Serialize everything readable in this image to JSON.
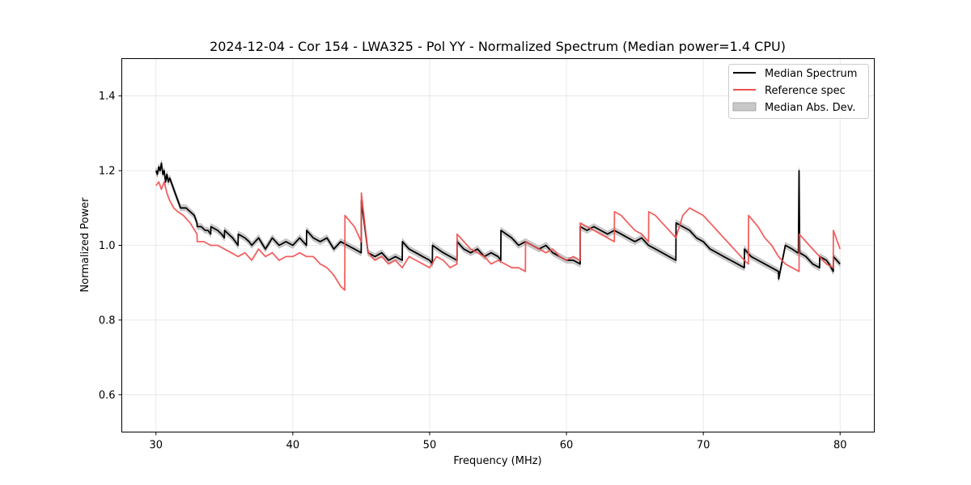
{
  "chart_data": {
    "type": "line",
    "title": "2024-12-04 - Cor 154 - LWA325 - Pol YY - Normalized Spectrum (Median power=1.4 CPU)",
    "xlabel": "Frequency (MHz)",
    "ylabel": "Normalized Power",
    "xlim": [
      27.5,
      82.5
    ],
    "ylim": [
      0.5,
      1.5
    ],
    "xticks": [
      30,
      40,
      50,
      60,
      70,
      80
    ],
    "yticks": [
      0.6,
      0.8,
      1.0,
      1.2,
      1.4
    ],
    "xtick_labels": [
      "30",
      "40",
      "50",
      "60",
      "70",
      "80"
    ],
    "ytick_labels": [
      "0.6",
      "0.8",
      "1.0",
      "1.2",
      "1.4"
    ],
    "grid": true,
    "legend_position": "top-right",
    "legend": [
      {
        "name": "Median Spectrum",
        "kind": "line",
        "color": "#000000"
      },
      {
        "name": "Reference spec",
        "kind": "line",
        "color": "#f05050"
      },
      {
        "name": "Median Abs. Dev.",
        "kind": "band",
        "color": "#c8c8c8"
      }
    ],
    "series": [
      {
        "name": "Median Spectrum",
        "color": "#000000",
        "mad": 0.008,
        "x": [
          30.0,
          30.1,
          30.2,
          30.3,
          30.4,
          30.5,
          30.6,
          30.7,
          30.8,
          30.9,
          31.0,
          31.2,
          31.4,
          31.6,
          31.8,
          32.0,
          32.2,
          32.5,
          32.8,
          33.0,
          33.01,
          33.3,
          33.6,
          33.8,
          34.0,
          34.01,
          34.5,
          34.8,
          35.0,
          35.01,
          35.3,
          35.6,
          36.0,
          36.01,
          36.5,
          36.8,
          37.0,
          37.5,
          38.0,
          38.5,
          39.0,
          39.5,
          40.0,
          40.5,
          41.0,
          41.01,
          41.5,
          42.0,
          42.5,
          43.0,
          43.5,
          44.0,
          44.5,
          45.0,
          45.01,
          45.5,
          46.0,
          46.5,
          47.0,
          47.5,
          48.0,
          48.01,
          48.5,
          49.0,
          49.5,
          50.0,
          50.2,
          50.21,
          50.6,
          51.0,
          51.5,
          52.0,
          52.01,
          52.5,
          53.0,
          53.5,
          54.0,
          54.5,
          55.0,
          55.2,
          55.21,
          55.6,
          56.0,
          56.5,
          57.0,
          57.5,
          58.0,
          58.5,
          59.0,
          59.5,
          60.0,
          60.5,
          61.0,
          61.01,
          61.5,
          62.0,
          62.5,
          63.0,
          63.5,
          64.0,
          64.5,
          65.0,
          65.5,
          66.0,
          66.5,
          67.0,
          67.5,
          68.0,
          68.01,
          68.5,
          69.0,
          69.5,
          70.0,
          70.5,
          71.0,
          71.5,
          72.0,
          72.5,
          73.0,
          73.01,
          73.5,
          74.0,
          74.5,
          75.0,
          75.5,
          75.51,
          76.0,
          76.5,
          76.9,
          76.95,
          77.0,
          77.05,
          77.5,
          78.0,
          78.5,
          78.51,
          79.0,
          79.2,
          79.5,
          79.51,
          80.0
        ],
        "y": [
          1.2,
          1.19,
          1.21,
          1.2,
          1.22,
          1.19,
          1.2,
          1.17,
          1.19,
          1.17,
          1.18,
          1.16,
          1.14,
          1.12,
          1.1,
          1.1,
          1.1,
          1.09,
          1.08,
          1.06,
          1.05,
          1.05,
          1.04,
          1.04,
          1.03,
          1.05,
          1.04,
          1.03,
          1.02,
          1.04,
          1.03,
          1.02,
          1.0,
          1.03,
          1.02,
          1.01,
          1.0,
          1.02,
          0.99,
          1.02,
          1.0,
          1.01,
          1.0,
          1.02,
          1.0,
          1.04,
          1.02,
          1.01,
          1.02,
          0.99,
          1.01,
          1.0,
          0.99,
          0.98,
          1.12,
          0.98,
          0.97,
          0.98,
          0.96,
          0.97,
          0.96,
          1.01,
          0.99,
          0.98,
          0.97,
          0.96,
          0.95,
          1.0,
          0.99,
          0.98,
          0.97,
          0.96,
          1.01,
          0.99,
          0.98,
          0.99,
          0.97,
          0.98,
          0.97,
          0.96,
          1.04,
          1.03,
          1.02,
          1.0,
          1.01,
          1.0,
          0.99,
          1.0,
          0.98,
          0.97,
          0.96,
          0.96,
          0.95,
          1.05,
          1.04,
          1.05,
          1.04,
          1.03,
          1.04,
          1.03,
          1.02,
          1.01,
          1.02,
          1.0,
          0.99,
          0.98,
          0.97,
          0.96,
          1.06,
          1.05,
          1.04,
          1.02,
          1.01,
          0.99,
          0.98,
          0.97,
          0.96,
          0.95,
          0.94,
          0.99,
          0.97,
          0.96,
          0.95,
          0.94,
          0.93,
          0.91,
          1.0,
          0.99,
          0.98,
          0.98,
          1.2,
          0.98,
          0.97,
          0.95,
          0.94,
          0.97,
          0.96,
          0.95,
          0.93,
          0.97,
          0.95
        ]
      },
      {
        "name": "Reference spec",
        "color": "#f05050",
        "x": [
          30.0,
          30.2,
          30.4,
          30.6,
          30.8,
          31.0,
          31.3,
          31.6,
          32.0,
          32.5,
          33.0,
          33.01,
          33.5,
          34.0,
          34.5,
          35.0,
          35.5,
          36.0,
          36.5,
          37.0,
          37.5,
          38.0,
          38.5,
          39.0,
          39.5,
          40.0,
          40.5,
          41.0,
          41.5,
          42.0,
          42.5,
          43.0,
          43.5,
          43.8,
          43.81,
          44.5,
          45.0,
          45.01,
          45.5,
          46.0,
          46.5,
          47.0,
          47.5,
          48.0,
          48.5,
          49.0,
          49.5,
          50.0,
          50.5,
          51.0,
          51.5,
          52.0,
          52.01,
          52.5,
          53.0,
          53.5,
          54.0,
          54.5,
          55.0,
          55.5,
          56.0,
          56.5,
          57.0,
          57.01,
          57.5,
          58.0,
          58.5,
          59.0,
          59.5,
          60.0,
          60.5,
          61.0,
          61.01,
          61.5,
          62.0,
          62.5,
          63.0,
          63.5,
          63.51,
          64.0,
          64.5,
          65.0,
          65.5,
          66.0,
          66.01,
          66.5,
          67.0,
          67.5,
          68.0,
          68.5,
          69.0,
          69.5,
          70.0,
          70.5,
          71.0,
          71.5,
          72.0,
          72.5,
          73.0,
          73.3,
          73.31,
          74.0,
          74.5,
          75.0,
          75.5,
          76.0,
          76.5,
          77.0,
          77.01,
          77.5,
          78.0,
          78.5,
          79.0,
          79.5,
          79.51,
          80.0
        ],
        "y": [
          1.16,
          1.17,
          1.15,
          1.17,
          1.14,
          1.12,
          1.1,
          1.09,
          1.08,
          1.06,
          1.03,
          1.01,
          1.01,
          1.0,
          1.0,
          0.99,
          0.98,
          0.97,
          0.98,
          0.96,
          0.99,
          0.97,
          0.98,
          0.96,
          0.97,
          0.97,
          0.98,
          0.97,
          0.97,
          0.95,
          0.94,
          0.92,
          0.89,
          0.88,
          1.08,
          1.05,
          1.01,
          1.14,
          0.98,
          0.96,
          0.97,
          0.95,
          0.96,
          0.94,
          0.97,
          0.96,
          0.95,
          0.94,
          0.97,
          0.96,
          0.94,
          0.95,
          1.03,
          1.01,
          0.99,
          0.98,
          0.97,
          0.95,
          0.96,
          0.95,
          0.94,
          0.94,
          0.93,
          1.01,
          1.0,
          0.99,
          0.98,
          0.99,
          0.97,
          0.96,
          0.97,
          0.96,
          1.06,
          1.05,
          1.04,
          1.03,
          1.02,
          1.01,
          1.09,
          1.08,
          1.06,
          1.04,
          1.03,
          1.01,
          1.09,
          1.08,
          1.06,
          1.04,
          1.02,
          1.08,
          1.1,
          1.09,
          1.08,
          1.06,
          1.04,
          1.02,
          1.0,
          0.98,
          0.96,
          0.95,
          1.08,
          1.05,
          1.02,
          1.0,
          0.97,
          0.95,
          0.94,
          0.93,
          1.03,
          1.01,
          0.99,
          0.97,
          0.95,
          0.94,
          1.04,
          0.99
        ]
      }
    ]
  }
}
